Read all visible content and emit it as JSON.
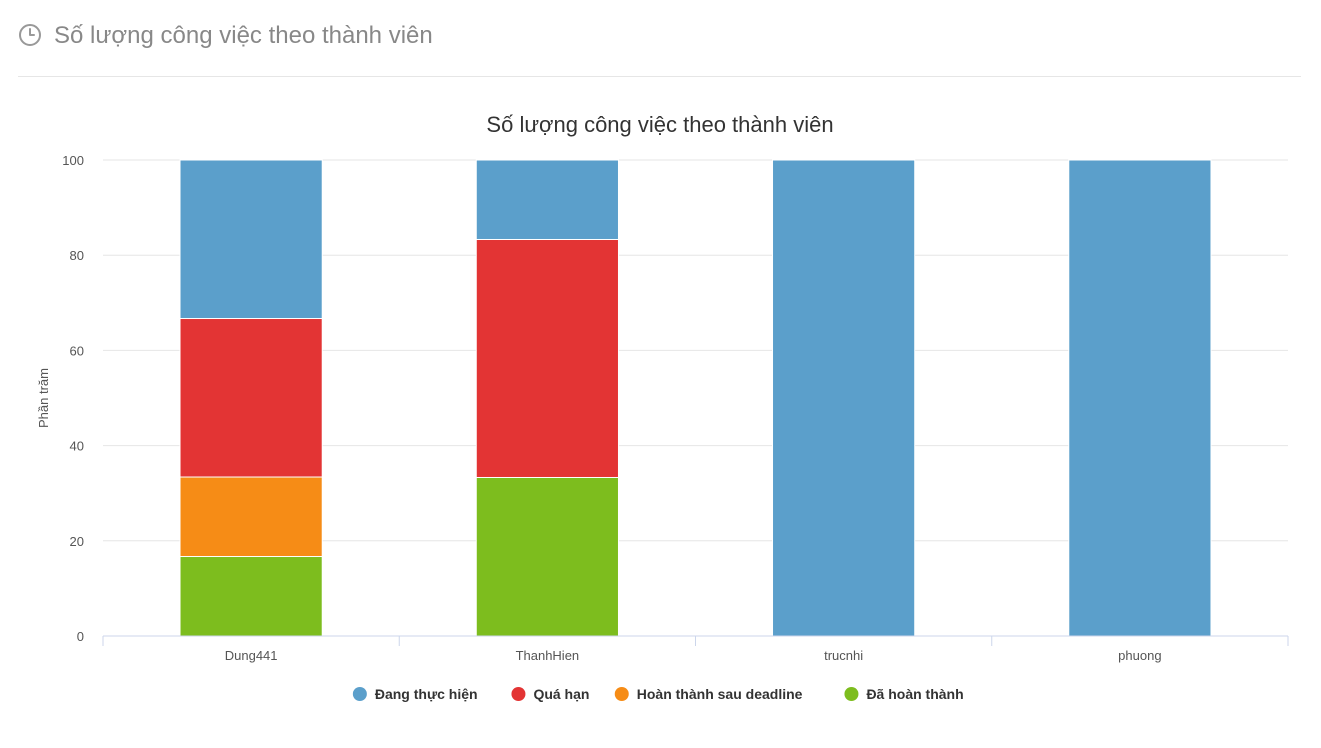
{
  "panel": {
    "title": "Số lượng công việc theo thành viên",
    "icon": "clock-icon"
  },
  "chart_data": {
    "type": "bar",
    "stacked": true,
    "percent": true,
    "title": "Số lượng công việc theo thành viên",
    "xlabel": "",
    "ylabel": "Phần trăm",
    "ylim": [
      0,
      100
    ],
    "yticks": [
      0,
      20,
      40,
      60,
      80,
      100
    ],
    "grid": true,
    "legend_position": "bottom",
    "categories": [
      "Dung441",
      "ThanhHien",
      "trucnhi",
      "phuong"
    ],
    "series": [
      {
        "name": "Đang thực hiện",
        "color": "#5b9fcb",
        "values": [
          33.3,
          16.7,
          100,
          100
        ]
      },
      {
        "name": "Quá hạn",
        "color": "#e33434",
        "values": [
          33.3,
          50,
          0,
          0
        ]
      },
      {
        "name": "Hoàn thành sau deadline",
        "color": "#f68c16",
        "values": [
          16.7,
          0,
          0,
          0
        ]
      },
      {
        "name": "Đã hoàn thành",
        "color": "#7dbd1e",
        "values": [
          16.7,
          33.3,
          0,
          0
        ]
      }
    ]
  }
}
